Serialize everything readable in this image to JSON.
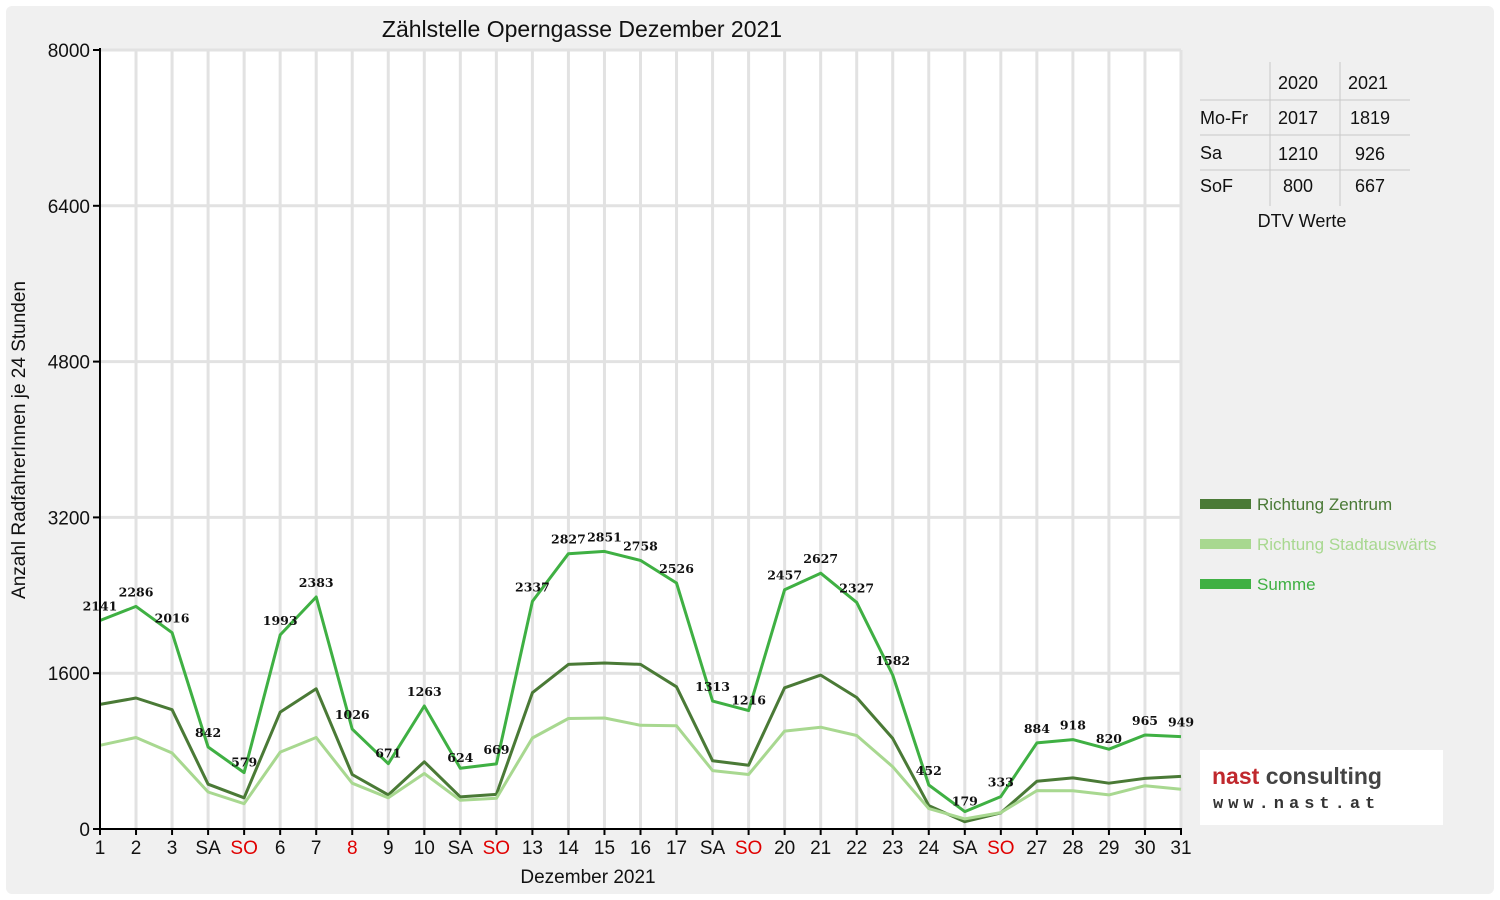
{
  "chart_data": {
    "type": "line",
    "title": "Zählstelle Operngasse Dezember 2021",
    "xlabel": "Dezember 2021",
    "ylabel": "Anzahl RadfahrerInnen je 24 Stunden",
    "ylim": [
      0,
      8000
    ],
    "yticks": [
      "0",
      "1600",
      "3200",
      "4800",
      "6400",
      "8000"
    ],
    "grid": true,
    "legend_position": "right",
    "categories": [
      "1",
      "2",
      "3",
      "SA",
      "SO",
      "6",
      "7",
      "8",
      "9",
      "10",
      "SA",
      "SO",
      "13",
      "14",
      "15",
      "16",
      "17",
      "SA",
      "SO",
      "20",
      "21",
      "22",
      "23",
      "24",
      "SA",
      "SO",
      "27",
      "28",
      "29",
      "30",
      "31"
    ],
    "red_categories": [
      4,
      7,
      11,
      18,
      25
    ],
    "series": [
      {
        "name": "Richtung Zentrum",
        "color": "#4a7a36",
        "values": [
          1280,
          1345,
          1225,
          460,
          320,
          1200,
          1440,
          560,
          350,
          690,
          330,
          355,
          1400,
          1690,
          1705,
          1690,
          1460,
          700,
          655,
          1450,
          1580,
          1350,
          930,
          240,
          75,
          165,
          490,
          525,
          470,
          520,
          540
        ]
      },
      {
        "name": "Richtung Stadtauswärts",
        "color": "#a8d890",
        "values": [
          860,
          940,
          780,
          380,
          260,
          790,
          940,
          470,
          320,
          570,
          295,
          315,
          935,
          1135,
          1140,
          1065,
          1060,
          600,
          560,
          1005,
          1045,
          960,
          640,
          210,
          104,
          168,
          394,
          393,
          350,
          445,
          409
        ]
      },
      {
        "name": "Summe",
        "color": "#3fb043",
        "values": [
          2141,
          2286,
          2016,
          842,
          579,
          1993,
          2383,
          1026,
          671,
          1263,
          624,
          669,
          2337,
          2827,
          2851,
          2758,
          2526,
          1313,
          1216,
          2457,
          2627,
          2327,
          1582,
          452,
          179,
          333,
          884,
          918,
          820,
          965,
          949
        ]
      }
    ],
    "data_labels": [
      "2141",
      "2286",
      "2016",
      "842",
      "579",
      "1993",
      "2383",
      "1026",
      "671",
      "1263",
      "624",
      "669",
      "2337",
      "2827",
      "2851",
      "2758",
      "2526",
      "1313",
      "1216",
      "2457",
      "2627",
      "2327",
      "1582",
      "452",
      "179",
      "333",
      "884",
      "918",
      "820",
      "965",
      "949"
    ]
  },
  "dtv_table": {
    "caption": "DTV Werte",
    "columns": [
      "2020",
      "2021"
    ],
    "rows": [
      {
        "label": "Mo-Fr",
        "values": [
          "2017",
          "1819"
        ]
      },
      {
        "label": "Sa",
        "values": [
          "1210",
          "926"
        ]
      },
      {
        "label": "SoF",
        "values": [
          "800",
          "667"
        ]
      }
    ]
  },
  "logo": {
    "brand_part1": "nast",
    "brand_part2": "consulting",
    "url": "www.nast.at",
    "brand_color1": "#c0282d",
    "brand_color2": "#444444"
  }
}
